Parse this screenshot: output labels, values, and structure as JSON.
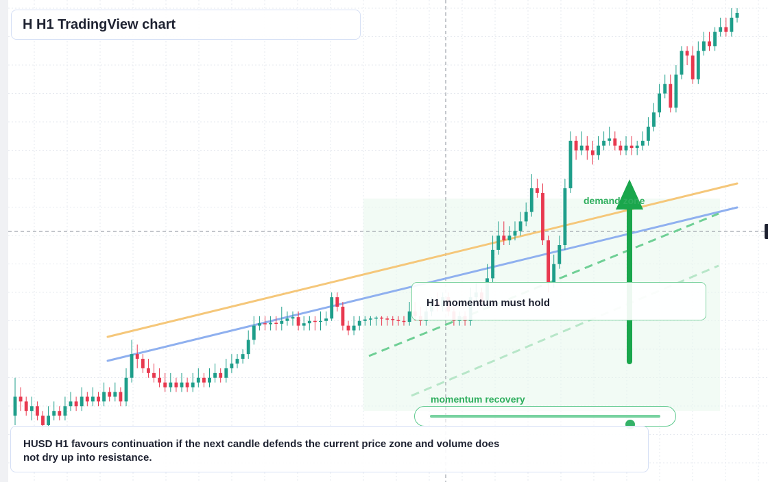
{
  "title": "H H1 TradingView chart",
  "note": "H1 momentum must hold",
  "caption": "HUSD H1 favours continuation if the next candle defends the current price zone and volume does not dry up into resistance.",
  "labels": {
    "demand": "demand zone",
    "momentum": "momentum recovery"
  },
  "slider": {
    "value": 0.87
  },
  "colors": {
    "up": "#1e9e8a",
    "down": "#e8394f",
    "orange_line": "#f5c77a",
    "blue_line": "#8fb0ef",
    "zone": "#e7f7ec",
    "accent_green": "#1aa64c"
  },
  "chart_data": {
    "type": "candlestick",
    "title": "H H1 TradingView chart",
    "xlabel": "",
    "ylabel": "",
    "grid": true,
    "ylim": [
      0,
      100
    ],
    "candles": [
      [
        14,
        18,
        12,
        22
      ],
      [
        18,
        17,
        15,
        20
      ],
      [
        17,
        15,
        14,
        18
      ],
      [
        15,
        16,
        13,
        18
      ],
      [
        16,
        14,
        13,
        17
      ],
      [
        14,
        12,
        11,
        15
      ],
      [
        12,
        14,
        11,
        16
      ],
      [
        14,
        15,
        13,
        17
      ],
      [
        15,
        14,
        13,
        16
      ],
      [
        14,
        16,
        13,
        18
      ],
      [
        16,
        17,
        15,
        19
      ],
      [
        17,
        16,
        15,
        18
      ],
      [
        16,
        18,
        15,
        20
      ],
      [
        18,
        17,
        16,
        19
      ],
      [
        17,
        18,
        16,
        20
      ],
      [
        18,
        17,
        16,
        19
      ],
      [
        17,
        19,
        16,
        21
      ],
      [
        19,
        18,
        17,
        20
      ],
      [
        18,
        19,
        17,
        21
      ],
      [
        19,
        17,
        16,
        20
      ],
      [
        17,
        22,
        16,
        24
      ],
      [
        22,
        27,
        21,
        30
      ],
      [
        27,
        26,
        24,
        29
      ],
      [
        26,
        24,
        23,
        27
      ],
      [
        24,
        23,
        22,
        26
      ],
      [
        23,
        22,
        21,
        25
      ],
      [
        22,
        21,
        20,
        24
      ],
      [
        21,
        20,
        19,
        23
      ],
      [
        20,
        21,
        19,
        23
      ],
      [
        21,
        20,
        19,
        22
      ],
      [
        20,
        21,
        19,
        23
      ],
      [
        21,
        20,
        19,
        22
      ],
      [
        20,
        21,
        19,
        23
      ],
      [
        21,
        22,
        20,
        24
      ],
      [
        22,
        21,
        20,
        23
      ],
      [
        21,
        22,
        20,
        24
      ],
      [
        22,
        23,
        21,
        25
      ],
      [
        23,
        22,
        21,
        24
      ],
      [
        22,
        24,
        21,
        26
      ],
      [
        24,
        25,
        23,
        27
      ],
      [
        25,
        26,
        24,
        27
      ],
      [
        26,
        27,
        25,
        28
      ],
      [
        27,
        30,
        26,
        32
      ],
      [
        30,
        33,
        29,
        35
      ],
      [
        33,
        33.5,
        32,
        35
      ],
      [
        33.5,
        33.3,
        32,
        35
      ],
      [
        33.3,
        33.6,
        32,
        35
      ],
      [
        33.6,
        33.4,
        32,
        35
      ],
      [
        33.4,
        34,
        32,
        37
      ],
      [
        34,
        34.5,
        33,
        36
      ],
      [
        34.5,
        34.8,
        33,
        36
      ],
      [
        34.8,
        33,
        32,
        36
      ],
      [
        33,
        33.5,
        32,
        35
      ],
      [
        33.5,
        34,
        32,
        35
      ],
      [
        34,
        33.8,
        32,
        35
      ],
      [
        33.8,
        34,
        32,
        36
      ],
      [
        34,
        34.5,
        33,
        36
      ],
      [
        34.5,
        39,
        34,
        40
      ],
      [
        39,
        37,
        36,
        40
      ],
      [
        37,
        33,
        32,
        38
      ],
      [
        33,
        32,
        31,
        34
      ],
      [
        32,
        33,
        31,
        35
      ],
      [
        33,
        34,
        32,
        35
      ],
      [
        34,
        34.3,
        33,
        35
      ],
      [
        34.3,
        34.5,
        33,
        35
      ],
      [
        34.5,
        34.7,
        33,
        35
      ],
      [
        34.7,
        34.5,
        33,
        35
      ],
      [
        34.5,
        34.4,
        33,
        35
      ],
      [
        34.4,
        34.2,
        33,
        35
      ],
      [
        34.2,
        34,
        33,
        35
      ],
      [
        34,
        33.8,
        33,
        35
      ],
      [
        33.8,
        36,
        33,
        38
      ],
      [
        36,
        35,
        34,
        38
      ],
      [
        35,
        34,
        33,
        37
      ],
      [
        34,
        36,
        33,
        38
      ],
      [
        36,
        38,
        35,
        39
      ],
      [
        38,
        37,
        36,
        40
      ],
      [
        37,
        39,
        36,
        40
      ],
      [
        39,
        36,
        35,
        40
      ],
      [
        36,
        34,
        33,
        37
      ],
      [
        34,
        35,
        33,
        36
      ],
      [
        35,
        34,
        33,
        36
      ],
      [
        34,
        39,
        33,
        41
      ],
      [
        39,
        40,
        38,
        42
      ],
      [
        40,
        38,
        37,
        41
      ],
      [
        38,
        43,
        37,
        46
      ],
      [
        43,
        49,
        42,
        52
      ],
      [
        49,
        52,
        48,
        55
      ],
      [
        52,
        51,
        50,
        55
      ],
      [
        51,
        52,
        50,
        54
      ],
      [
        52,
        53,
        51,
        55
      ],
      [
        53,
        55,
        52,
        57
      ],
      [
        55,
        57,
        54,
        59
      ],
      [
        57,
        62,
        56,
        65
      ],
      [
        62,
        61,
        60,
        64
      ],
      [
        61,
        51,
        50,
        63
      ],
      [
        51,
        42,
        40,
        52
      ],
      [
        42,
        46,
        41,
        48
      ],
      [
        46,
        50,
        45,
        52
      ],
      [
        50,
        62,
        49,
        64
      ],
      [
        62,
        72,
        61,
        74
      ],
      [
        72,
        70,
        68,
        73
      ],
      [
        70,
        71,
        69,
        74
      ],
      [
        71,
        70,
        68,
        73
      ],
      [
        70,
        69,
        67,
        72
      ],
      [
        69,
        71,
        68,
        73
      ],
      [
        71,
        72,
        70,
        74
      ],
      [
        72,
        72.5,
        71,
        75
      ],
      [
        72.5,
        71,
        70,
        74
      ],
      [
        71,
        70,
        69,
        72
      ],
      [
        70,
        71,
        69,
        73
      ],
      [
        71,
        70.5,
        69,
        73
      ],
      [
        70.5,
        71,
        69,
        72
      ],
      [
        71,
        72,
        70,
        74
      ],
      [
        72,
        75,
        71,
        77
      ],
      [
        75,
        78,
        74,
        80
      ],
      [
        78,
        82,
        77,
        84
      ],
      [
        82,
        84,
        81,
        86
      ],
      [
        84,
        79,
        78,
        86
      ],
      [
        79,
        86,
        78,
        88
      ],
      [
        86,
        91,
        85,
        92
      ],
      [
        91,
        90,
        88,
        92
      ],
      [
        90,
        85,
        84,
        92
      ],
      [
        85,
        91,
        84,
        93
      ],
      [
        91,
        93,
        90,
        95
      ],
      [
        93,
        92,
        91,
        95
      ],
      [
        92,
        95,
        91,
        96
      ],
      [
        95,
        96,
        94,
        98
      ],
      [
        96,
        95,
        94,
        98
      ],
      [
        95,
        98,
        94,
        100
      ],
      [
        98,
        99,
        97,
        100
      ]
    ]
  }
}
